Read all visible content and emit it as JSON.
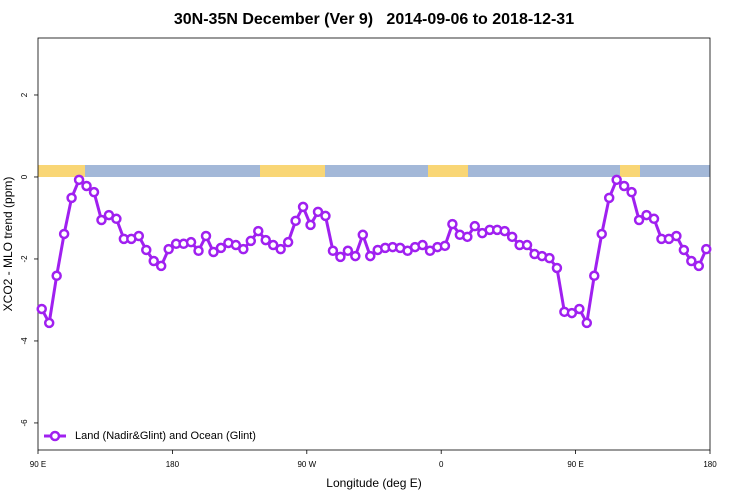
{
  "chart_data": {
    "type": "line",
    "title": "30N-35N December (Ver 9)   2014-09-06 to 2018-12-31",
    "xlabel": "Longitude (deg E)",
    "ylabel": "XCO2 - MLO trend (ppm)",
    "legend": "bottomleft",
    "xlim": [
      90,
      540
    ],
    "xticks": [
      {
        "value": 90,
        "label": "90 E"
      },
      {
        "value": 180,
        "label": "180"
      },
      {
        "value": 270,
        "label": "90 W"
      },
      {
        "value": 360,
        "label": "0"
      },
      {
        "value": 450,
        "label": "90 E"
      },
      {
        "value": 540,
        "label": "180"
      }
    ],
    "ylim": [
      -6.66,
      3.39
    ],
    "yticks": [
      -6,
      -4,
      -2,
      0,
      2
    ],
    "x": [
      92.5,
      97.5,
      102.5,
      107.5,
      112.5,
      117.5,
      122.5,
      127.5,
      132.5,
      137.5,
      142.5,
      147.5,
      152.5,
      157.5,
      162.5,
      167.5,
      172.5,
      177.5,
      182.5,
      187.5,
      192.5,
      197.5,
      202.5,
      207.5,
      212.5,
      217.5,
      222.5,
      227.5,
      232.5,
      237.5,
      242.5,
      247.5,
      252.5,
      257.5,
      262.5,
      267.5,
      272.5,
      277.5,
      282.5,
      287.5,
      292.5,
      297.5,
      302.5,
      307.5,
      312.5,
      317.5,
      322.5,
      327.5,
      332.5,
      337.5,
      342.5,
      347.5,
      352.5,
      357.5,
      362.5,
      367.5,
      372.5,
      377.5,
      382.5,
      387.5,
      392.5,
      397.5,
      402.5,
      407.5,
      412.5,
      417.5,
      422.5,
      427.5,
      432.5,
      437.5,
      442.5,
      447.5,
      452.5,
      457.5,
      462.5,
      467.5,
      472.5,
      477.5,
      482.5,
      487.5,
      492.5,
      497.5,
      502.5,
      507.5,
      512.5,
      517.5,
      522.5,
      527.5,
      532.5,
      537.5
    ],
    "series": [
      {
        "name": "Land (Nadir&Glint) and Ocean (Glint)",
        "color": "#a020f0",
        "values": [
          -3.22,
          -3.56,
          -2.41,
          -1.39,
          -0.51,
          -0.07,
          -0.22,
          -0.37,
          -1.05,
          -0.93,
          -1.02,
          -1.51,
          -1.51,
          -1.44,
          -1.78,
          -2.05,
          -2.17,
          -1.76,
          -1.63,
          -1.63,
          -1.59,
          -1.8,
          -1.44,
          -1.83,
          -1.73,
          -1.61,
          -1.66,
          -1.76,
          -1.56,
          -1.32,
          -1.54,
          -1.66,
          -1.76,
          -1.59,
          -1.07,
          -0.73,
          -1.17,
          -0.85,
          -0.95,
          -1.8,
          -1.95,
          -1.8,
          -1.93,
          -1.41,
          -1.93,
          -1.78,
          -1.73,
          -1.71,
          -1.73,
          -1.8,
          -1.71,
          -1.66,
          -1.8,
          -1.71,
          -1.68,
          -1.15,
          -1.41,
          -1.46,
          -1.2,
          -1.37,
          -1.29,
          -1.29,
          -1.32,
          -1.46,
          -1.66,
          -1.66,
          -1.88,
          -1.93,
          -1.98,
          -2.22,
          -3.29,
          -3.32,
          -3.22,
          -3.56,
          -2.41,
          -1.39,
          -0.51,
          -0.07,
          -0.22,
          -0.37,
          -1.05,
          -0.93,
          -1.02,
          -1.51,
          -1.51,
          -1.44,
          -1.78,
          -2.05,
          -2.17,
          -1.76
        ]
      }
    ]
  }
}
